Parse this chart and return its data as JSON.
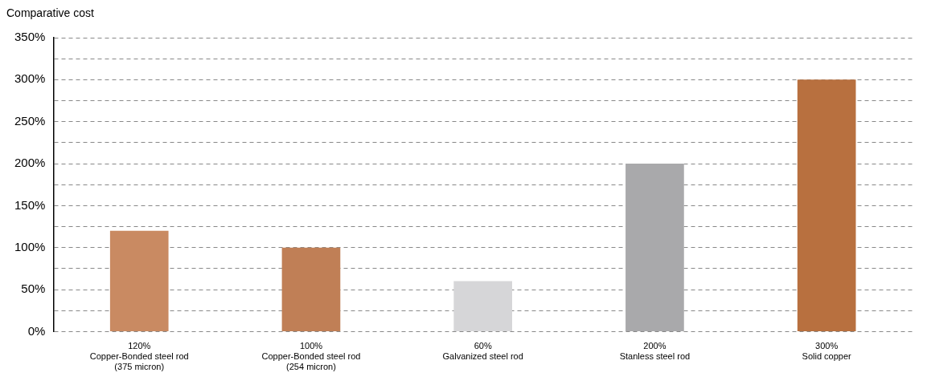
{
  "chart_data": {
    "type": "bar",
    "ylabel": "Comparative cost",
    "categories": [
      "Copper-Bonded steel rod\n(375 micron)",
      "Copper-Bonded steel rod\n(254 micron)",
      "Galvanized steel rod",
      "Stanless steel rod",
      "Solid copper"
    ],
    "values": [
      120,
      100,
      60,
      200,
      300
    ],
    "value_labels": [
      "120%",
      "100%",
      "60%",
      "200%",
      "300%"
    ],
    "colors": [
      "#c98a62",
      "#c07f56",
      "#d6d6d8",
      "#a9a9ab",
      "#b8703f"
    ],
    "ylim": [
      0,
      350
    ],
    "yticks": [
      {
        "value": 0,
        "label": "0%"
      },
      {
        "value": 25,
        "label": null
      },
      {
        "value": 50,
        "label": "50%"
      },
      {
        "value": 75,
        "label": null
      },
      {
        "value": 100,
        "label": "100%"
      },
      {
        "value": 125,
        "label": null
      },
      {
        "value": 150,
        "label": "150%"
      },
      {
        "value": 175,
        "label": null
      },
      {
        "value": 200,
        "label": "200%"
      },
      {
        "value": 225,
        "label": null
      },
      {
        "value": 250,
        "label": "250%"
      },
      {
        "value": 275,
        "label": null
      },
      {
        "value": 300,
        "label": "300%"
      },
      {
        "value": 325,
        "label": null
      },
      {
        "value": 350,
        "label": "350%"
      }
    ],
    "grid": "y",
    "line_style": "dashed"
  }
}
